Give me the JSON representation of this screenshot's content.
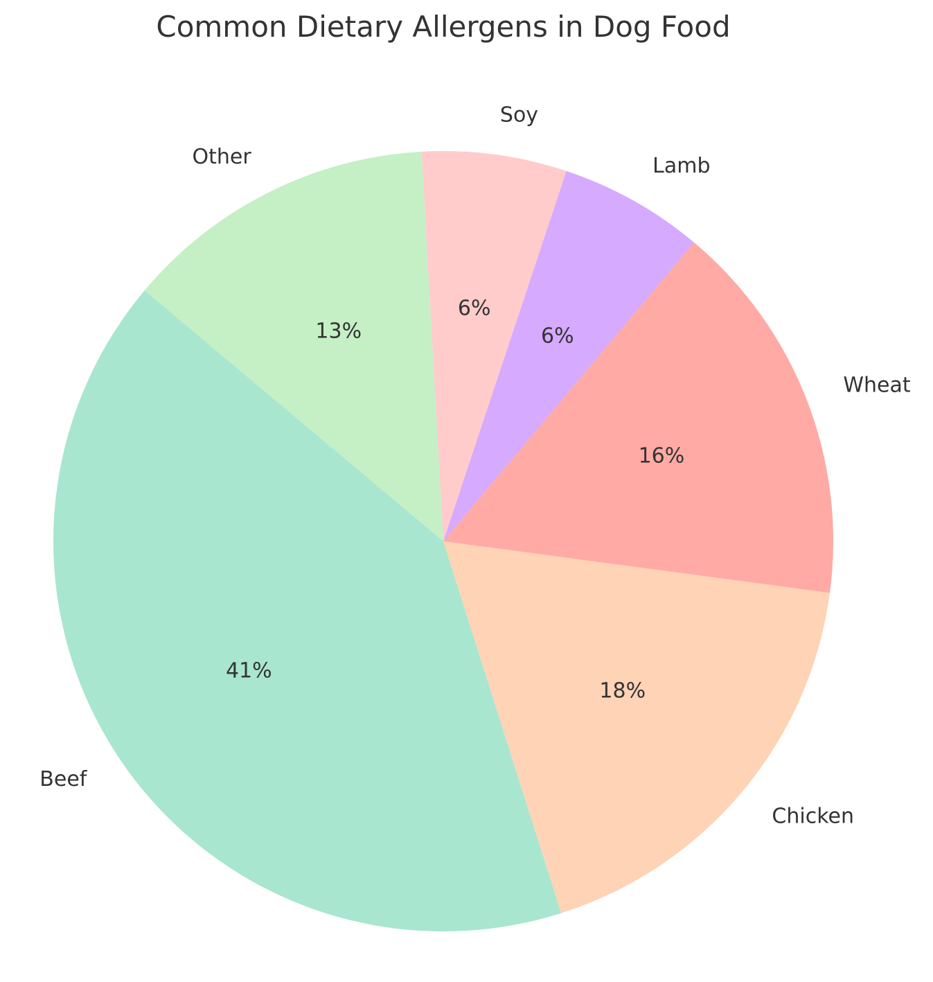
{
  "chart_data": {
    "type": "pie",
    "title": "Common Dietary Allergens in Dog Food",
    "categories": [
      "Beef",
      "Chicken",
      "Wheat",
      "Lamb",
      "Soy",
      "Other"
    ],
    "values": [
      41,
      18,
      16,
      6,
      6,
      13
    ],
    "value_labels": [
      "41%",
      "18%",
      "16%",
      "6%",
      "6%",
      "13%"
    ],
    "colors": [
      "#a8e6cf",
      "#ffd3b6",
      "#ffaaa5",
      "#d5aaff",
      "#ffcbcb",
      "#c5efc5"
    ],
    "start_angle_deg": 140,
    "direction": "counterclockwise"
  }
}
